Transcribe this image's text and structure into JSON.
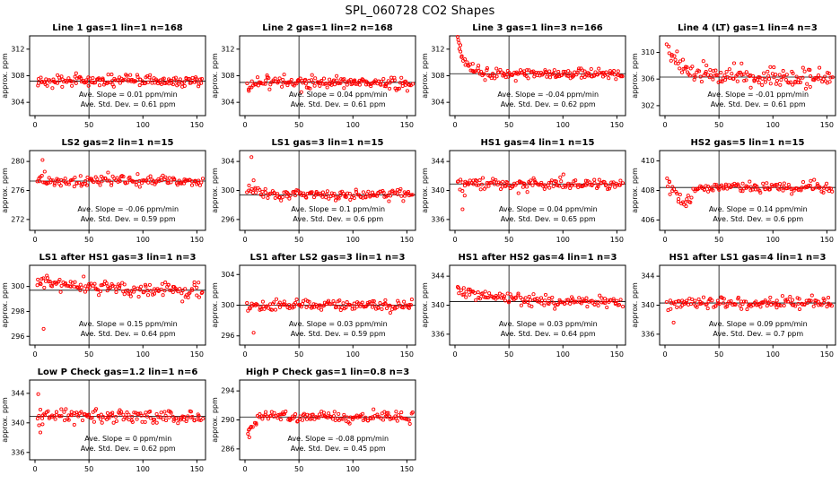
{
  "title": "SPL_060728  CO2 Shapes",
  "ylabel": "approx. ppm",
  "colors": {
    "point": "#ff0000",
    "axis": "#000000",
    "refline": "#000000"
  },
  "x_ticks": [
    0,
    50,
    100,
    150
  ],
  "x_tick_labels": [
    "0",
    "50",
    "100",
    "150"
  ],
  "x_domain": [
    -5,
    158
  ],
  "vline_x": 50,
  "chart_data": [
    {
      "type": "scatter",
      "title": "Line 1 gas=1 lin=1 n=168",
      "y_ticks": [
        304,
        308,
        312
      ],
      "y_domain": [
        302,
        314
      ],
      "ref_y": 307.2,
      "slope_ppm_min": 0.01,
      "std_dev_ppm": 0.61,
      "ann_slope": "Ave. Slope =  0.01  ppm/min",
      "ann_sd": "Ave. Std. Dev. =  0.61  ppm",
      "model": {
        "count": 160,
        "mean": 307.2,
        "noise": 0.45,
        "transient_amp": 0,
        "transient_tau": 1,
        "bump": null,
        "outliers": []
      }
    },
    {
      "type": "scatter",
      "title": "Line 2 gas=1 lin=2 n=168",
      "y_ticks": [
        304,
        308,
        312
      ],
      "y_domain": [
        302,
        314
      ],
      "ref_y": 307.0,
      "slope_ppm_min": 0.04,
      "std_dev_ppm": 0.61,
      "ann_slope": "Ave. Slope =  0.04  ppm/min",
      "ann_sd": "Ave. Std. Dev. =  0.61  ppm",
      "model": {
        "count": 160,
        "mean": 307.0,
        "noise": 0.45,
        "transient_amp": -0.9,
        "transient_tau": 4,
        "bump": null,
        "outliers": []
      }
    },
    {
      "type": "scatter",
      "title": "Line 3 gas=1 lin=3 n=166",
      "y_ticks": [
        304,
        308,
        312
      ],
      "y_domain": [
        302,
        314
      ],
      "ref_y": 308.3,
      "slope_ppm_min": -0.04,
      "std_dev_ppm": 0.62,
      "ann_slope": "Ave. Slope =  -0.04  ppm/min",
      "ann_sd": "Ave. Std. Dev. =  0.62  ppm",
      "model": {
        "count": 158,
        "mean": 308.3,
        "noise": 0.4,
        "transient_amp": 5.3,
        "transient_tau": 7,
        "bump": null,
        "outliers": [
          [
            3,
            313.4
          ],
          [
            5,
            312.6
          ]
        ]
      }
    },
    {
      "type": "scatter",
      "title": "Line 4 (LT) gas=1 lin=4 n=3",
      "y_ticks": [
        302,
        306,
        310
      ],
      "y_domain": [
        300.5,
        312.5
      ],
      "ref_y": 306.3,
      "slope_ppm_min": -0.01,
      "std_dev_ppm": 0.61,
      "ann_slope": "Ave. Slope =  -0.01  ppm/min",
      "ann_sd": "Ave. Std. Dev. =  0.61  ppm",
      "model": {
        "count": 150,
        "mean": 306.3,
        "noise": 0.7,
        "transient_amp": 4.4,
        "transient_tau": 13,
        "bump": null,
        "outliers": []
      }
    },
    {
      "type": "scatter",
      "title": "LS2 gas=2 lin=1 n=15",
      "y_ticks": [
        272,
        276,
        280
      ],
      "y_domain": [
        270.5,
        281.5
      ],
      "ref_y": 277.3,
      "slope_ppm_min": -0.06,
      "std_dev_ppm": 0.59,
      "ann_slope": "Ave. Slope =  -0.06  ppm/min",
      "ann_sd": "Ave. Std. Dev. =  0.59  ppm",
      "model": {
        "count": 140,
        "mean": 277.3,
        "noise": 0.35,
        "transient_amp": 0,
        "transient_tau": 1,
        "bump": null,
        "outliers": [
          [
            7,
            280.2
          ],
          [
            9,
            278.6
          ]
        ]
      }
    },
    {
      "type": "scatter",
      "title": "LS1 gas=3 lin=1 n=15",
      "y_ticks": [
        296,
        300,
        304
      ],
      "y_domain": [
        294.5,
        305.5
      ],
      "ref_y": 299.4,
      "slope_ppm_min": 0.1,
      "std_dev_ppm": 0.6,
      "ann_slope": "Ave. Slope =  0.1  ppm/min",
      "ann_sd": "Ave. Std. Dev. =  0.6  ppm",
      "model": {
        "count": 140,
        "mean": 299.4,
        "noise": 0.35,
        "transient_amp": 1.1,
        "transient_tau": 9,
        "bump": null,
        "outliers": [
          [
            6,
            304.6
          ],
          [
            8,
            301.4
          ]
        ]
      }
    },
    {
      "type": "scatter",
      "title": "HS1 gas=4 lin=1 n=15",
      "y_ticks": [
        336,
        340,
        344
      ],
      "y_domain": [
        334.5,
        345.5
      ],
      "ref_y": 340.9,
      "slope_ppm_min": 0.04,
      "std_dev_ppm": 0.65,
      "ann_slope": "Ave. Slope =  0.04  ppm/min",
      "ann_sd": "Ave. Std. Dev. =  0.65  ppm",
      "model": {
        "count": 140,
        "mean": 340.9,
        "noise": 0.4,
        "transient_amp": 0,
        "transient_tau": 1,
        "bump": null,
        "outliers": [
          [
            7,
            337.4
          ],
          [
            9,
            339.3
          ]
        ]
      }
    },
    {
      "type": "scatter",
      "title": "HS2 gas=5 lin=1 n=15",
      "y_ticks": [
        406,
        408,
        410
      ],
      "y_domain": [
        405.3,
        410.7
      ],
      "ref_y": 408.2,
      "slope_ppm_min": 0.14,
      "std_dev_ppm": 0.6,
      "ann_slope": "Ave. Slope =  0.14  ppm/min",
      "ann_sd": "Ave. Std. Dev. =  0.6  ppm",
      "model": {
        "count": 140,
        "mean": 408.25,
        "noise": 0.2,
        "transient_amp": 0,
        "transient_tau": 1,
        "bump": {
          "center": 17,
          "width": 9,
          "amp": -1.05
        },
        "outliers": [
          [
            4,
            408.6
          ]
        ]
      }
    },
    {
      "type": "scatter",
      "title": "LS1 after HS1 gas=3 lin=1 n=3",
      "y_ticks": [
        296,
        298,
        300
      ],
      "y_domain": [
        295.3,
        301.7
      ],
      "ref_y": 299.7,
      "slope_ppm_min": 0.15,
      "std_dev_ppm": 0.64,
      "ann_slope": "Ave. Slope =  0.15  ppm/min",
      "ann_sd": "Ave. Std. Dev. =  0.64  ppm",
      "model": {
        "count": 140,
        "mean": 299.6,
        "noise": 0.3,
        "transient_amp": 0.9,
        "transient_tau": 60,
        "bump": null,
        "outliers": [
          [
            8,
            296.6
          ]
        ]
      }
    },
    {
      "type": "scatter",
      "title": "LS1 after LS2 gas=3 lin=1 n=3",
      "y_ticks": [
        296,
        300,
        304
      ],
      "y_domain": [
        294.8,
        305.2
      ],
      "ref_y": 300.0,
      "slope_ppm_min": 0.03,
      "std_dev_ppm": 0.59,
      "ann_slope": "Ave. Slope =  0.03  ppm/min",
      "ann_sd": "Ave. Std. Dev. =  0.59  ppm",
      "model": {
        "count": 140,
        "mean": 300.0,
        "noise": 0.35,
        "transient_amp": 0,
        "transient_tau": 1,
        "bump": null,
        "outliers": [
          [
            8,
            296.4
          ]
        ]
      }
    },
    {
      "type": "scatter",
      "title": "HS1 after HS2 gas=4 lin=1 n=3",
      "y_ticks": [
        336,
        340,
        344
      ],
      "y_domain": [
        334.5,
        345.5
      ],
      "ref_y": 340.5,
      "slope_ppm_min": 0.03,
      "std_dev_ppm": 0.64,
      "ann_slope": "Ave. Slope =  0.03  ppm/min",
      "ann_sd": "Ave. Std. Dev. =  0.64  ppm",
      "model": {
        "count": 140,
        "mean": 340.4,
        "noise": 0.4,
        "transient_amp": 1.8,
        "transient_tau": 40,
        "bump": null,
        "outliers": []
      }
    },
    {
      "type": "scatter",
      "title": "HS1 after LS1 gas=4 lin=1 n=3",
      "y_ticks": [
        336,
        340,
        344
      ],
      "y_domain": [
        334.5,
        345.5
      ],
      "ref_y": 340.3,
      "slope_ppm_min": 0.09,
      "std_dev_ppm": 0.7,
      "ann_slope": "Ave. Slope =  0.09  ppm/min",
      "ann_sd": "Ave. Std. Dev. =  0.7  ppm",
      "model": {
        "count": 140,
        "mean": 340.3,
        "noise": 0.45,
        "transient_amp": 0,
        "transient_tau": 1,
        "bump": null,
        "outliers": [
          [
            8,
            337.6
          ]
        ]
      }
    },
    {
      "type": "scatter",
      "title": "Low P Check gas=1.2 lin=1 n=6",
      "y_ticks": [
        336,
        340,
        344
      ],
      "y_domain": [
        335,
        345.8
      ],
      "ref_y": 340.9,
      "slope_ppm_min": 0,
      "std_dev_ppm": 0.62,
      "ann_slope": "Ave. Slope =  0  ppm/min",
      "ann_sd": "Ave. Std. Dev. =  0.62  ppm",
      "model": {
        "count": 140,
        "mean": 340.9,
        "noise": 0.5,
        "transient_amp": 0,
        "transient_tau": 1,
        "bump": null,
        "outliers": [
          [
            3,
            343.9
          ],
          [
            5,
            338.7
          ],
          [
            7,
            339.8
          ]
        ]
      }
    },
    {
      "type": "scatter",
      "title": "High P Check gas=1 lin=0.8 n=3",
      "y_ticks": [
        286,
        290,
        294
      ],
      "y_domain": [
        284.5,
        295.5
      ],
      "ref_y": 290.4,
      "slope_ppm_min": -0.08,
      "std_dev_ppm": 0.45,
      "ann_slope": "Ave. Slope =  -0.08  ppm/min",
      "ann_sd": "Ave. Std. Dev. =  0.45  ppm",
      "model": {
        "count": 140,
        "mean": 290.5,
        "noise": 0.4,
        "transient_amp": -2.6,
        "transient_tau": 5,
        "bump": null,
        "outliers": [
          [
            4,
            287.6
          ]
        ]
      }
    }
  ]
}
